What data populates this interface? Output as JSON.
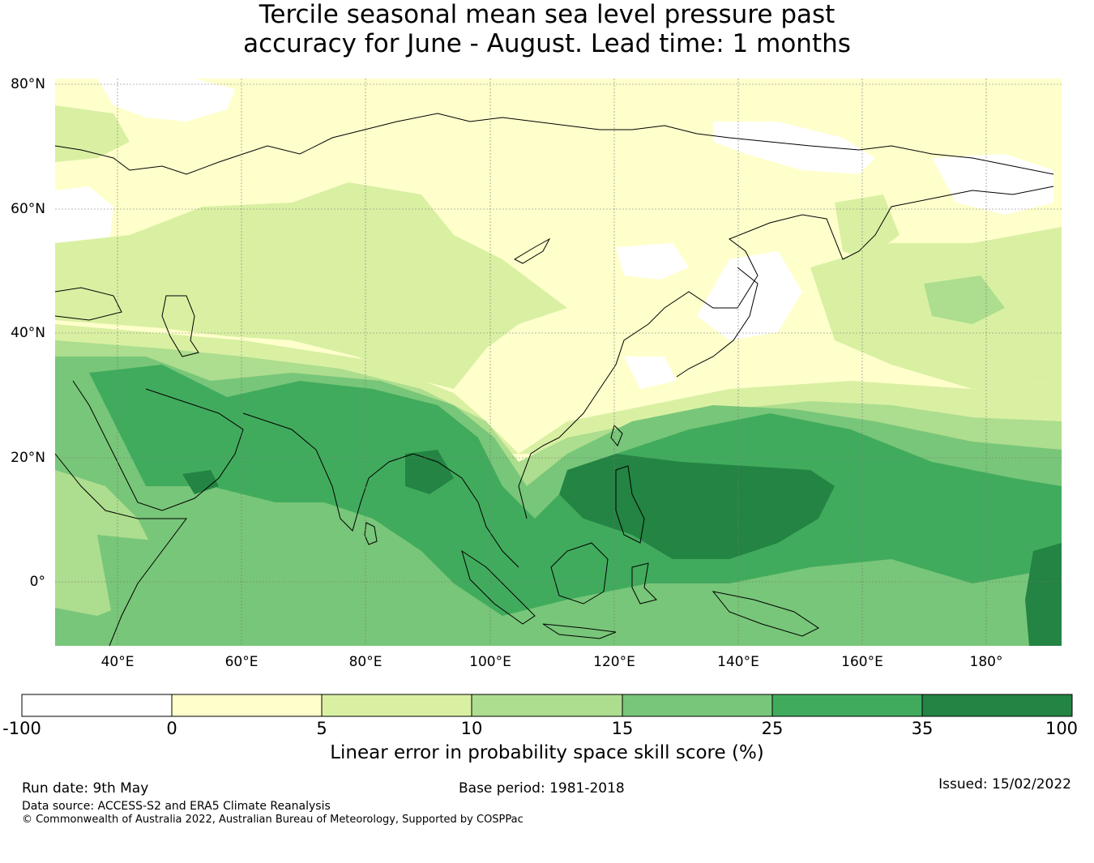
{
  "title": {
    "line1": "Tercile seasonal mean sea level pressure past",
    "line2": "accuracy for June - August. Lead time: 1 months"
  },
  "map": {
    "lat_labels": [
      "80°N",
      "60°N",
      "40°N",
      "20°N",
      "0°"
    ],
    "lon_labels": [
      "40°E",
      "60°E",
      "80°E",
      "100°E",
      "120°E",
      "140°E",
      "160°E",
      "180°"
    ],
    "colors": {
      "c_neg": "#ffffff",
      "c0": "#ffffcc",
      "c5": "#d9f0a3",
      "c10": "#addd8e",
      "c15": "#78c679",
      "c25": "#41ab5d",
      "c35": "#238443"
    }
  },
  "colorbar": {
    "ticks": [
      "-100",
      "0",
      "5",
      "10",
      "15",
      "25",
      "35",
      "100"
    ],
    "colors": [
      "#ffffff",
      "#ffffcc",
      "#d9f0a3",
      "#addd8e",
      "#78c679",
      "#41ab5d",
      "#238443"
    ],
    "label": "Linear error in probability space skill score (%)"
  },
  "footer": {
    "run_date": "Run date: 9th May",
    "base_period": "Base period: 1981-2018",
    "issued": "Issued: 15/02/2022",
    "data_source": "Data source: ACCESS-S2 and ERA5 Climate Reanalysis",
    "copyright": "© Commonwealth of Australia 2022, Australian Bureau of Meteorology, Supported by COSPPac"
  }
}
